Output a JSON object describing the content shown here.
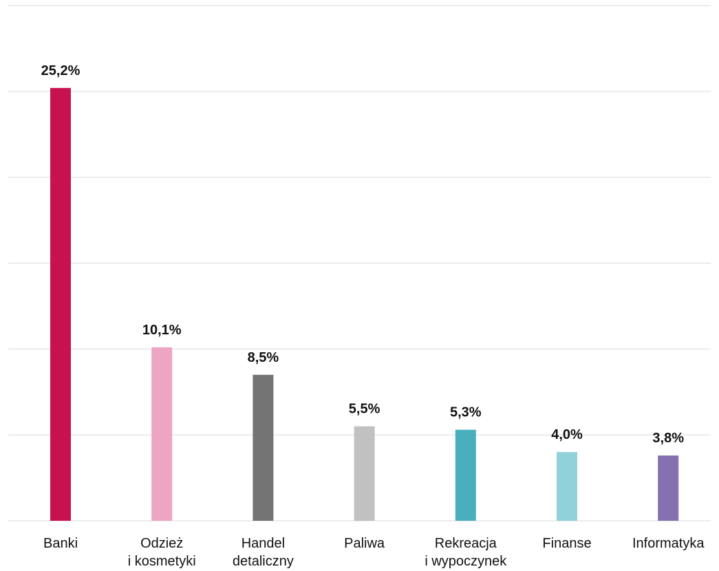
{
  "chart_data": {
    "type": "bar",
    "categories": [
      [
        "Banki"
      ],
      [
        "Odzież",
        "i kosmetyki"
      ],
      [
        "Handel",
        "detaliczny"
      ],
      [
        "Paliwa"
      ],
      [
        "Rekreacja",
        "i wypoczynek"
      ],
      [
        "Finanse"
      ],
      [
        "Informatyka"
      ]
    ],
    "values": [
      25.2,
      10.1,
      8.5,
      5.5,
      5.3,
      4.0,
      3.8
    ],
    "value_labels": [
      "25,2%",
      "10,1%",
      "8,5%",
      "5,5%",
      "5,3%",
      "4,0%",
      "3,8%"
    ],
    "colors": [
      "#c8114f",
      "#eea4c3",
      "#747474",
      "#c1c1c1",
      "#4aafbd",
      "#90d1da",
      "#8570b0"
    ],
    "ylim": [
      0,
      30
    ],
    "grid": true,
    "title": "",
    "xlabel": "",
    "ylabel": ""
  }
}
